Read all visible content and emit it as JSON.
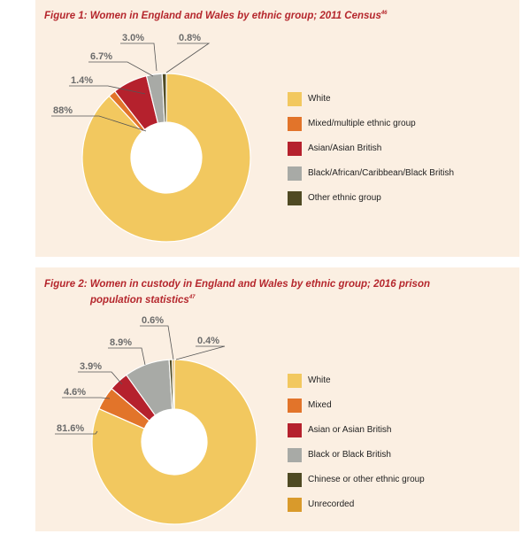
{
  "chart_data": [
    {
      "type": "pie",
      "title": "Figure 1: Women in England and Wales by ethnic group; 2011 Census",
      "footnote": "46",
      "categories": [
        "White",
        "Mixed/multiple ethnic group",
        "Asian/Asian British",
        "Black/African/Caribbean/Black British",
        "Other ethnic group"
      ],
      "values": [
        88,
        1.4,
        6.7,
        3.0,
        0.8
      ],
      "labels": [
        "88%",
        "1.4%",
        "6.7%",
        "3.0%",
        "0.8%"
      ],
      "colors": [
        "#f2c85f",
        "#e2742a",
        "#b5212d",
        "#a8aaa6",
        "#4f4a23"
      ],
      "donut": true,
      "legend": "right"
    },
    {
      "type": "pie",
      "title_line1": "Figure 2: Women in custody in England and Wales by ethnic group; 2016 prison",
      "title_line2": "population statistics",
      "footnote": "47",
      "categories": [
        "White",
        "Mixed",
        "Asian or Asian British",
        "Black or Black British",
        "Chinese or other ethnic group",
        "Unrecorded"
      ],
      "values": [
        81.6,
        4.6,
        3.9,
        8.9,
        0.6,
        0.4
      ],
      "labels": [
        "81.6%",
        "4.6%",
        "3.9%",
        "8.9%",
        "0.6%",
        "0.4%"
      ],
      "colors": [
        "#f2c85f",
        "#e2742a",
        "#b5212d",
        "#a8aaa6",
        "#4f4a23",
        "#d99a2b"
      ],
      "donut": true,
      "legend": "right"
    }
  ]
}
